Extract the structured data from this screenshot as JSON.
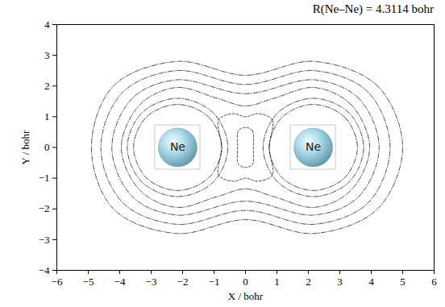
{
  "chart_data": {
    "type": "contour",
    "title": "R(Ne–Ne) = 4.3114 bohr",
    "x_label": "X / bohr",
    "y_label": "Y / bohr",
    "xlim": [
      -6,
      6
    ],
    "ylim": [
      -4,
      4
    ],
    "xticks": [
      -6,
      -5,
      -4,
      -3,
      -2,
      -1,
      0,
      1,
      2,
      3,
      4,
      5,
      6
    ],
    "yticks": [
      -4,
      -3,
      -2,
      -1,
      0,
      1,
      2,
      3,
      4
    ],
    "atoms": [
      {
        "label": "Ne",
        "x": -2.1557,
        "y": 0
      },
      {
        "label": "Ne",
        "x": 2.1557,
        "y": 0
      }
    ],
    "contours": [
      {
        "line_style": "dashdot",
        "points": [
          [
            5.0,
            0
          ],
          [
            4.2,
            2.0
          ],
          [
            2.2,
            2.8
          ],
          [
            0,
            2.35
          ],
          [
            -2.2,
            2.8
          ],
          [
            -4.2,
            2.0
          ],
          [
            -4.9,
            0
          ],
          [
            -4.2,
            -2.0
          ],
          [
            -2.2,
            -2.8
          ],
          [
            0,
            -2.35
          ],
          [
            2.2,
            -2.8
          ],
          [
            4.2,
            -2.0
          ]
        ]
      },
      {
        "line_style": "dashdot",
        "points": [
          [
            4.6,
            0
          ],
          [
            3.9,
            1.8
          ],
          [
            2.2,
            2.5
          ],
          [
            0,
            2.05
          ],
          [
            -2.2,
            2.5
          ],
          [
            -3.9,
            1.8
          ],
          [
            -4.6,
            0
          ],
          [
            -3.9,
            -1.8
          ],
          [
            -2.2,
            -2.5
          ],
          [
            0,
            -2.05
          ],
          [
            2.2,
            -2.5
          ],
          [
            3.9,
            -1.8
          ]
        ]
      },
      {
        "line_style": "dashdot",
        "points": [
          [
            4.25,
            0
          ],
          [
            3.6,
            1.6
          ],
          [
            2.2,
            2.2
          ],
          [
            0,
            1.75
          ],
          [
            -2.2,
            2.2
          ],
          [
            -3.6,
            1.6
          ],
          [
            -4.25,
            0
          ],
          [
            -3.6,
            -1.6
          ],
          [
            -2.2,
            -2.2
          ],
          [
            0,
            -1.75
          ],
          [
            2.2,
            -2.2
          ],
          [
            3.6,
            -1.6
          ]
        ]
      },
      {
        "line_style": "dashdot",
        "points": [
          [
            3.95,
            0
          ],
          [
            3.35,
            1.4
          ],
          [
            2.2,
            1.95
          ],
          [
            0.9,
            1.6
          ],
          [
            0,
            1.35
          ],
          [
            -0.9,
            1.6
          ],
          [
            -2.2,
            1.95
          ],
          [
            -3.35,
            1.4
          ],
          [
            -3.95,
            0
          ],
          [
            -3.35,
            -1.4
          ],
          [
            -2.2,
            -1.95
          ],
          [
            -0.9,
            -1.6
          ],
          [
            0,
            -1.35
          ],
          [
            0.9,
            -1.6
          ],
          [
            2.2,
            -1.95
          ],
          [
            3.35,
            -1.4
          ]
        ]
      },
      {
        "line_style": "dashdot",
        "points": [
          [
            -0.56,
            0
          ],
          [
            -1.03,
            1.13
          ],
          [
            -2.16,
            1.6
          ],
          [
            -3.29,
            1.13
          ],
          [
            -3.76,
            0
          ],
          [
            -3.29,
            -1.13
          ],
          [
            -2.16,
            -1.6
          ],
          [
            -1.03,
            -1.13
          ]
        ]
      },
      {
        "line_style": "dashdot",
        "points": [
          [
            -0.76,
            0
          ],
          [
            -1.17,
            0.99
          ],
          [
            -2.16,
            1.4
          ],
          [
            -3.15,
            0.99
          ],
          [
            -3.56,
            0
          ],
          [
            -3.15,
            -0.99
          ],
          [
            -2.16,
            -1.4
          ],
          [
            -1.17,
            -0.99
          ]
        ]
      },
      {
        "line_style": "dashdot",
        "points": [
          [
            3.76,
            0
          ],
          [
            3.29,
            1.13
          ],
          [
            2.16,
            1.6
          ],
          [
            1.03,
            1.13
          ],
          [
            0.56,
            0
          ],
          [
            1.03,
            -1.13
          ],
          [
            2.16,
            -1.6
          ],
          [
            3.29,
            -1.13
          ]
        ]
      },
      {
        "line_style": "dashdot",
        "points": [
          [
            3.56,
            0
          ],
          [
            3.15,
            0.99
          ],
          [
            2.16,
            1.4
          ],
          [
            1.17,
            0.99
          ],
          [
            0.76,
            0
          ],
          [
            1.17,
            -0.99
          ],
          [
            2.16,
            -1.4
          ],
          [
            3.15,
            -0.99
          ]
        ]
      },
      {
        "line_style": "dashed",
        "points": [
          [
            0.75,
            0
          ],
          [
            0.85,
            0.9
          ],
          [
            0.4,
            1.1
          ],
          [
            0,
            1.0
          ],
          [
            -0.4,
            1.1
          ],
          [
            -0.85,
            0.9
          ],
          [
            -0.75,
            0
          ],
          [
            -0.85,
            -0.9
          ],
          [
            -0.4,
            -1.1
          ],
          [
            0,
            -1.0
          ],
          [
            0.4,
            -1.1
          ],
          [
            0.85,
            -0.9
          ]
        ]
      },
      {
        "line_style": "dashed",
        "points": [
          [
            0.25,
            0
          ],
          [
            0.22,
            0.55
          ],
          [
            0,
            0.65
          ],
          [
            -0.22,
            0.55
          ],
          [
            -0.25,
            0
          ],
          [
            -0.22,
            -0.55
          ],
          [
            0,
            -0.65
          ],
          [
            0.22,
            -0.55
          ]
        ]
      }
    ]
  }
}
